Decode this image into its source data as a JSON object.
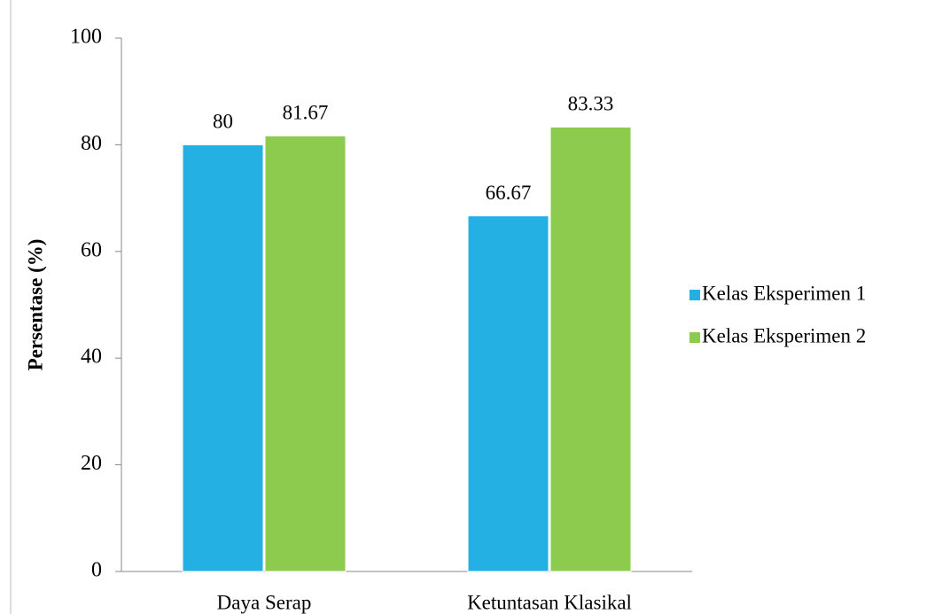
{
  "chart_data": {
    "type": "bar",
    "y_label": "Persentase (%)",
    "categories": [
      "Daya Serap",
      "Ketuntasan Klasikal"
    ],
    "series": [
      {
        "name": "Kelas Eksperimen 1",
        "color": "#25b0e4",
        "values": [
          80,
          66.67
        ]
      },
      {
        "name": "Kelas Eksperimen 2",
        "color": "#8ccb4e",
        "values": [
          81.67,
          83.33
        ]
      }
    ],
    "ylim": [
      0,
      100
    ],
    "yticks": [
      0,
      20,
      40,
      60,
      80,
      100
    ],
    "legend": "right"
  }
}
